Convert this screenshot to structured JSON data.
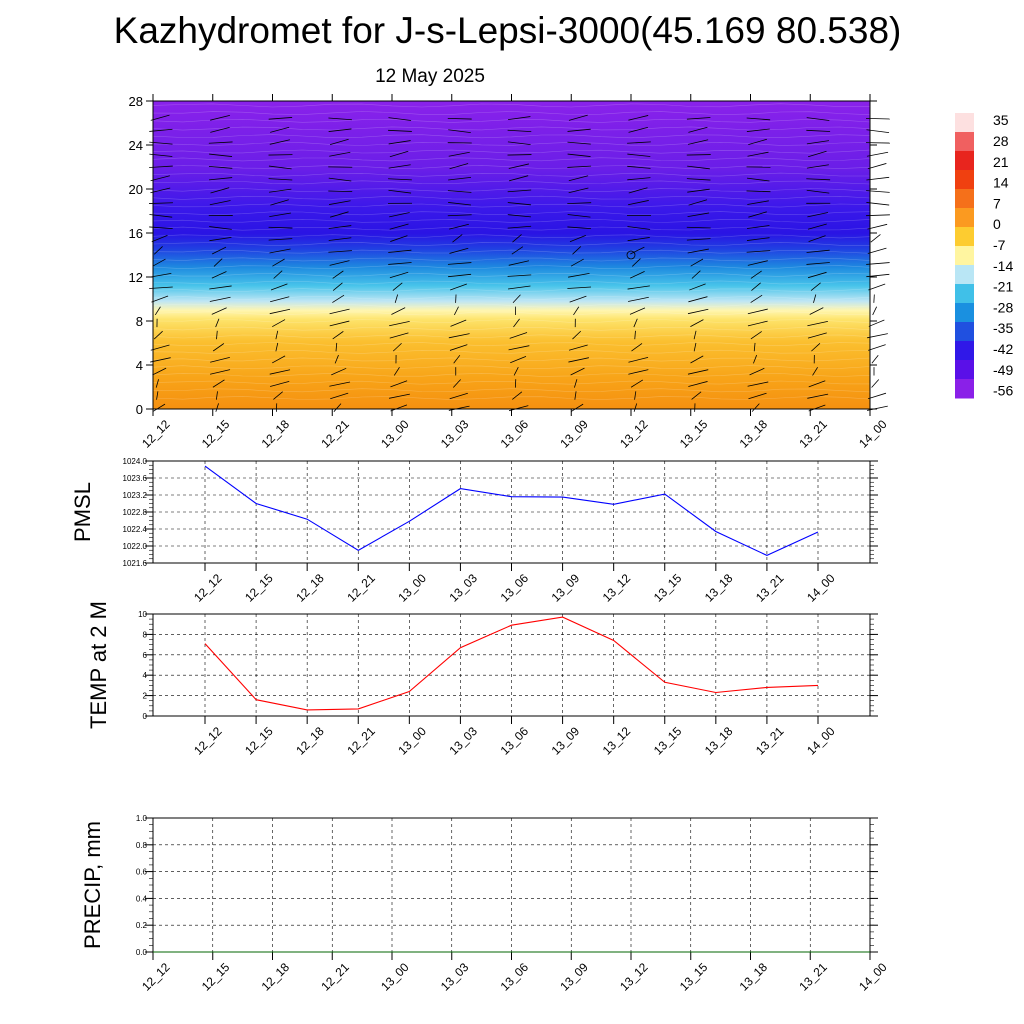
{
  "title": "Kazhydromet for J-s-Lepsi-3000(45.169 80.538)",
  "subtitle": "12 May 2025",
  "colors": {
    "pmsl_line": "#0000ff",
    "temp_line": "#ff0000",
    "precip_line": "#006400"
  },
  "chart_data": [
    {
      "type": "heatmap",
      "title": "",
      "ylabel": "",
      "x_ticks": [
        "12_12",
        "12_15",
        "12_18",
        "12_21",
        "13_00",
        "13_03",
        "13_06",
        "13_09",
        "13_12",
        "13_15",
        "13_18",
        "13_21",
        "14_00"
      ],
      "y_ticks": [
        0,
        4,
        8,
        12,
        16,
        20,
        24,
        28
      ],
      "ylim": [
        0,
        28
      ],
      "temperature_profile": [
        {
          "level": 0,
          "value": 4
        },
        {
          "level": 4,
          "value": 0
        },
        {
          "level": 8,
          "value": -6
        },
        {
          "level": 10,
          "value": -12
        },
        {
          "level": 12,
          "value": -28
        },
        {
          "level": 14,
          "value": -38
        },
        {
          "level": 16,
          "value": -56
        },
        {
          "level": 20,
          "value": -56
        },
        {
          "level": 28,
          "value": -56
        }
      ],
      "overlay": "wind barbs",
      "colorbar_labels": [
        "35",
        "28",
        "21",
        "14",
        "7",
        "0",
        "-7",
        "-14",
        "-21",
        "-28",
        "-35",
        "-42",
        "-49",
        "-56"
      ],
      "colorbar_colors": [
        "#fde0e0",
        "#f06060",
        "#e8251e",
        "#f04010",
        "#f5701a",
        "#fb9a20",
        "#fdcc30",
        "#fff5a0",
        "#b9e6f5",
        "#40c0e8",
        "#1a90e0",
        "#2050e0",
        "#3018e8",
        "#5a10e8",
        "#8a20e8"
      ]
    },
    {
      "type": "line",
      "ylabel": "PMSL",
      "x": [
        "12_12",
        "12_15",
        "12_18",
        "12_21",
        "13_00",
        "13_03",
        "13_06",
        "13_09",
        "13_12",
        "13_15",
        "13_18",
        "13_21",
        "14_00"
      ],
      "ylim": [
        1021.6,
        1024.0
      ],
      "y_ticks": [
        "1021.6",
        "1022.0",
        "1022.4",
        "1022.8",
        "1023.2",
        "1023.6",
        "1024.0"
      ],
      "series": [
        {
          "values": [
            1023.88,
            1023.0,
            1022.63,
            1021.9,
            1022.58,
            1023.35,
            1023.16,
            1023.15,
            1022.98,
            1023.22,
            1022.34,
            1021.78,
            1022.33
          ]
        }
      ],
      "grid": true
    },
    {
      "type": "line",
      "ylabel": "TEMP at 2 M",
      "x": [
        "12_12",
        "12_15",
        "12_18",
        "12_21",
        "13_00",
        "13_03",
        "13_06",
        "13_09",
        "13_12",
        "13_15",
        "13_18",
        "13_21",
        "14_00"
      ],
      "ylim": [
        0,
        10
      ],
      "y_ticks": [
        "0",
        "2",
        "4",
        "6",
        "8",
        "10"
      ],
      "series": [
        {
          "values": [
            7.1,
            1.6,
            0.6,
            0.7,
            2.4,
            6.7,
            8.9,
            9.7,
            7.4,
            3.3,
            2.3,
            2.8,
            3.0
          ]
        }
      ],
      "grid": true
    },
    {
      "type": "line",
      "ylabel": "PRECIP, mm",
      "x_ticks": [
        "12_12",
        "12_15",
        "12_18",
        "12_21",
        "13_00",
        "13_03",
        "13_06",
        "13_09",
        "13_12",
        "13_15",
        "13_18",
        "13_21",
        "14_00"
      ],
      "ylim": [
        0.0,
        1.0
      ],
      "y_ticks": [
        "0.0",
        "0.2",
        "0.4",
        "0.6",
        "0.8",
        "1.0"
      ],
      "series": [
        {
          "values": [
            0,
            0,
            0,
            0,
            0,
            0,
            0,
            0,
            0,
            0,
            0,
            0,
            0
          ]
        }
      ],
      "grid": true
    }
  ]
}
